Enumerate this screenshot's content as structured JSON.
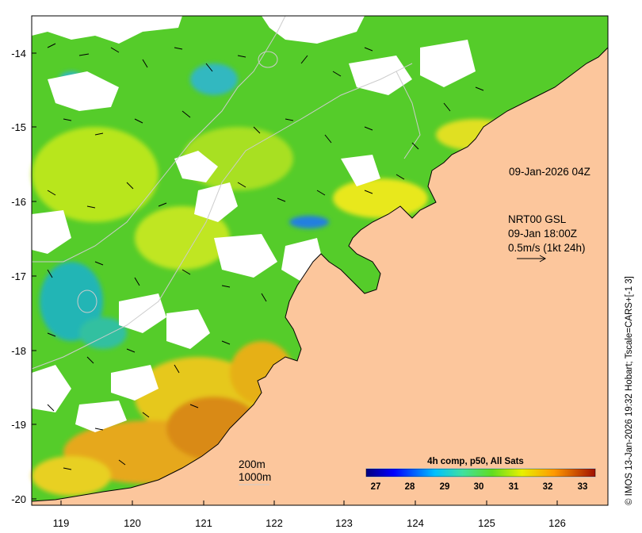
{
  "map": {
    "x_ticks": [
      "119",
      "120",
      "121",
      "122",
      "123",
      "124",
      "125",
      "126"
    ],
    "y_ticks": [
      "-14",
      "-15",
      "-16",
      "-17",
      "-18",
      "-19",
      "-20"
    ],
    "image_time": "09-Jan-2026 04Z",
    "current_source": "NRT00 GSL",
    "current_time": "09-Jan 18:00Z",
    "vector_scale": "0.5m/s (1kt 24h)",
    "isobath_200": "200m",
    "isobath_1000": "1000m",
    "credit": "© IMOS 13-Jan-2026 19:32 Hobart; Tscale=CARS+[-1 3]"
  },
  "colorbar": {
    "title": "4h comp, p50, All Sats",
    "ticks": [
      "27",
      "28",
      "29",
      "30",
      "31",
      "32",
      "33"
    ],
    "colors": [
      "#00007f",
      "#0000ff",
      "#007fff",
      "#00ffff",
      "#7fff7f",
      "#ffff00",
      "#ff7f00",
      "#ff0000",
      "#7f0000"
    ]
  },
  "colors": {
    "land": "#fcc69c",
    "no_data": "#ffffff",
    "sst_cool": "#1fb8c9",
    "sst_mid": "#55cc2a",
    "sst_warm": "#d9ec1e",
    "sst_hot": "#e69a18"
  }
}
